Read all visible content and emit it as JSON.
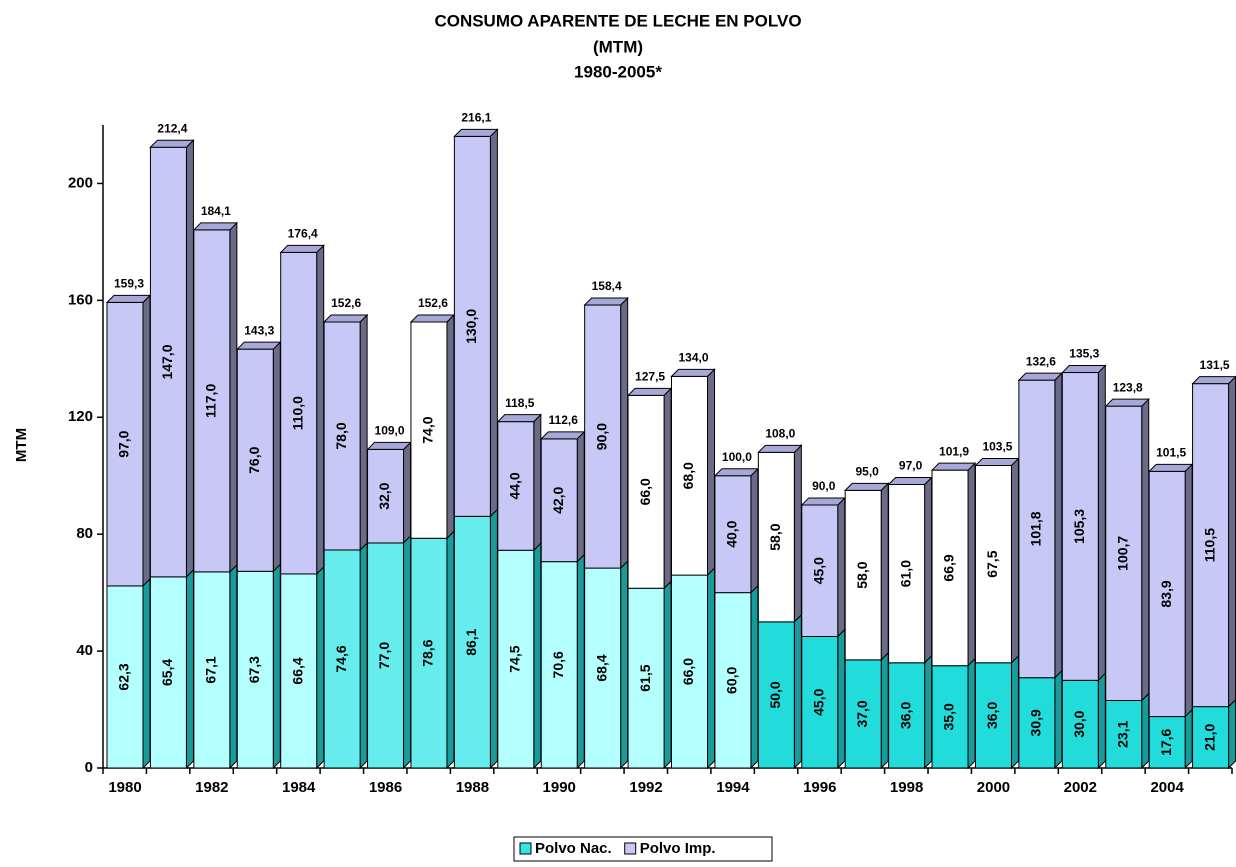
{
  "chart_data": {
    "type": "stacked_bar",
    "title": "CONSUMO APARENTE DE LECHE EN POLVO",
    "subtitle": "(MTM)",
    "period": "1980-2005*",
    "y_label": "MTM",
    "categories": [
      "1980",
      null,
      "1982",
      null,
      "1984",
      null,
      "1986",
      null,
      "1988",
      null,
      "1990",
      null,
      "1992",
      null,
      "1994",
      null,
      "1996",
      null,
      "1998",
      null,
      "2000",
      null,
      "2002",
      null,
      "2004",
      null
    ],
    "ylim": [
      0,
      220
    ],
    "yticks": [
      0,
      40,
      80,
      120,
      160,
      200
    ],
    "legend": "bottom",
    "series": [
      {
        "name": "Polvo Nac.",
        "color": "#33e6e6",
        "point_colors": [
          "#b4ffff",
          "#b4ffff",
          "#b4ffff",
          "#b4ffff",
          "#b4ffff",
          "#66ecec",
          "#66ecec",
          "#66ecec",
          "#66ecec",
          "#b4ffff",
          "#b4ffff",
          "#b4ffff",
          "#b4ffff",
          "#b4ffff",
          "#b4ffff",
          "#22dcdc",
          "#22dcdc",
          "#22dcdc",
          "#22dcdc",
          "#22dcdc",
          "#22dcdc",
          "#22dcdc",
          "#22dcdc",
          "#22dcdc",
          "#22dcdc",
          "#22dcdc"
        ],
        "values": [
          62.3,
          65.4,
          67.1,
          67.3,
          66.4,
          74.6,
          77.0,
          78.6,
          86.1,
          74.5,
          70.6,
          68.4,
          61.5,
          66.0,
          60.0,
          50.0,
          45.0,
          37.0,
          36.0,
          35.0,
          36.0,
          30.9,
          30.0,
          23.1,
          17.6,
          21.0
        ],
        "value_labels": [
          "62,3",
          "65,4",
          "67,1",
          "67,3",
          "66,4",
          "74,6",
          "77,0",
          "78,6",
          "86,1",
          "74,5",
          "70,6",
          "68,4",
          "61,5",
          "66,0",
          "60,0",
          "50,0",
          "45,0",
          "37,0",
          "36,0",
          "35,0",
          "36,0",
          "30,9",
          "30,0",
          "23,1",
          "17,6",
          "21,0"
        ]
      },
      {
        "name": "Polvo Imp.",
        "color": "#c8c8f6",
        "point_colors": [
          "#c8c8f6",
          "#c8c8f6",
          "#c8c8f6",
          "#c8c8f6",
          "#c8c8f6",
          "#c8c8f6",
          "#c8c8f6",
          "#ffffff",
          "#c8c8f6",
          "#c8c8f6",
          "#c8c8f6",
          "#c8c8f6",
          "#ffffff",
          "#ffffff",
          "#c8c8f6",
          "#ffffff",
          "#c8c8f6",
          "#ffffff",
          "#ffffff",
          "#ffffff",
          "#ffffff",
          "#c8c8f6",
          "#c8c8f6",
          "#c8c8f6",
          "#c8c8f6",
          "#c8c8f6"
        ],
        "values": [
          97.0,
          147.0,
          117.0,
          76.0,
          110.0,
          78.0,
          32.0,
          74.0,
          130.0,
          44.0,
          42.0,
          90.0,
          66.0,
          68.0,
          40.0,
          58.0,
          45.0,
          58.0,
          61.0,
          66.9,
          67.5,
          101.8,
          105.3,
          100.7,
          83.9,
          110.5
        ],
        "value_labels": [
          "97,0",
          "147,0",
          "117,0",
          "76,0",
          "110,0",
          "78,0",
          "32,0",
          "74,0",
          "130,0",
          "44,0",
          "42,0",
          "90,0",
          "66,0",
          "68,0",
          "40,0",
          "58,0",
          "45,0",
          "58,0",
          "61,0",
          "66,9",
          "67,5",
          "101,8",
          "105,3",
          "100,7",
          "83,9",
          "110,5"
        ]
      }
    ],
    "totals": [
      159.3,
      212.4,
      184.1,
      143.3,
      176.4,
      152.6,
      109.0,
      152.6,
      216.1,
      118.5,
      112.6,
      158.4,
      127.5,
      134.0,
      100.0,
      108.0,
      90.0,
      95.0,
      97.0,
      101.9,
      103.5,
      132.6,
      135.3,
      123.8,
      101.5,
      131.5
    ],
    "total_labels": [
      "159,3",
      "212,4",
      "184,1",
      "143,3",
      "176,4",
      "152,6",
      "109,0",
      "152,6",
      "216,1",
      "118,5",
      "112,6",
      "158,4",
      "127,5",
      "134,0",
      "100,0",
      "108,0",
      "90,0",
      "95,0",
      "97,0",
      "101,9",
      "103,5",
      "132,6",
      "135,3",
      "123,8",
      "101,5",
      "131,5"
    ]
  }
}
